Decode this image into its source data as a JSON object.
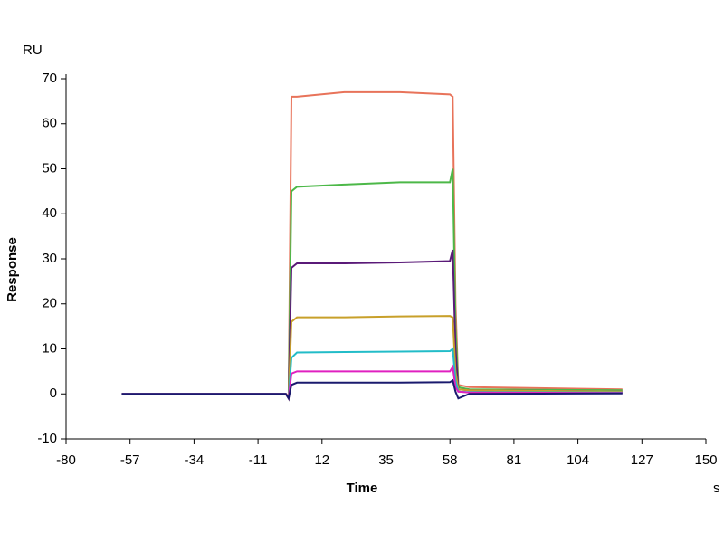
{
  "chart_data": {
    "type": "line",
    "y_unit": "RU",
    "ylabel": "Response",
    "xlabel": "Time",
    "x_unit": "s",
    "x": [
      -60,
      -30,
      -1,
      0,
      1,
      3,
      20,
      40,
      58,
      59,
      60,
      61,
      65,
      120
    ],
    "series": [
      {
        "color": "#e8735a",
        "values": [
          0,
          0,
          0,
          -0.5,
          66,
          66,
          67,
          67,
          66.5,
          66,
          20,
          2,
          1.5,
          1
        ]
      },
      {
        "color": "#4cb848",
        "values": [
          0,
          0,
          0,
          -1,
          45,
          46,
          46.5,
          47,
          47,
          50,
          15,
          1.5,
          1,
          0.8
        ]
      },
      {
        "color": "#5a1a78",
        "values": [
          0,
          0,
          0,
          -1,
          28,
          29,
          29,
          29.2,
          29.5,
          32,
          10,
          1,
          0.8,
          0.5
        ]
      },
      {
        "color": "#c8a02a",
        "values": [
          0,
          0,
          0,
          -1,
          16,
          17,
          17,
          17.2,
          17.3,
          17,
          5,
          1,
          0.8,
          0.5
        ]
      },
      {
        "color": "#22bcc8",
        "values": [
          0,
          0,
          0,
          -1,
          8,
          9.2,
          9.3,
          9.4,
          9.5,
          10,
          3,
          0.5,
          0.4,
          0.3
        ]
      },
      {
        "color": "#e020c0",
        "values": [
          0,
          0,
          0,
          -1,
          4.5,
          5,
          5,
          5,
          5,
          6,
          1.5,
          0.5,
          0.3,
          0.2
        ]
      },
      {
        "color": "#1a1a6e",
        "values": [
          0,
          0,
          0,
          -1,
          2,
          2.5,
          2.5,
          2.5,
          2.6,
          3,
          0.5,
          -1,
          0,
          0.1
        ]
      }
    ],
    "xlim": [
      -80,
      150
    ],
    "xticks": [
      -80,
      -57,
      -34,
      -11,
      12,
      35,
      58,
      81,
      104,
      127,
      150
    ],
    "ylim": [
      -10,
      70
    ],
    "yticks": [
      -10,
      0,
      10,
      20,
      30,
      40,
      50,
      60,
      70
    ]
  }
}
